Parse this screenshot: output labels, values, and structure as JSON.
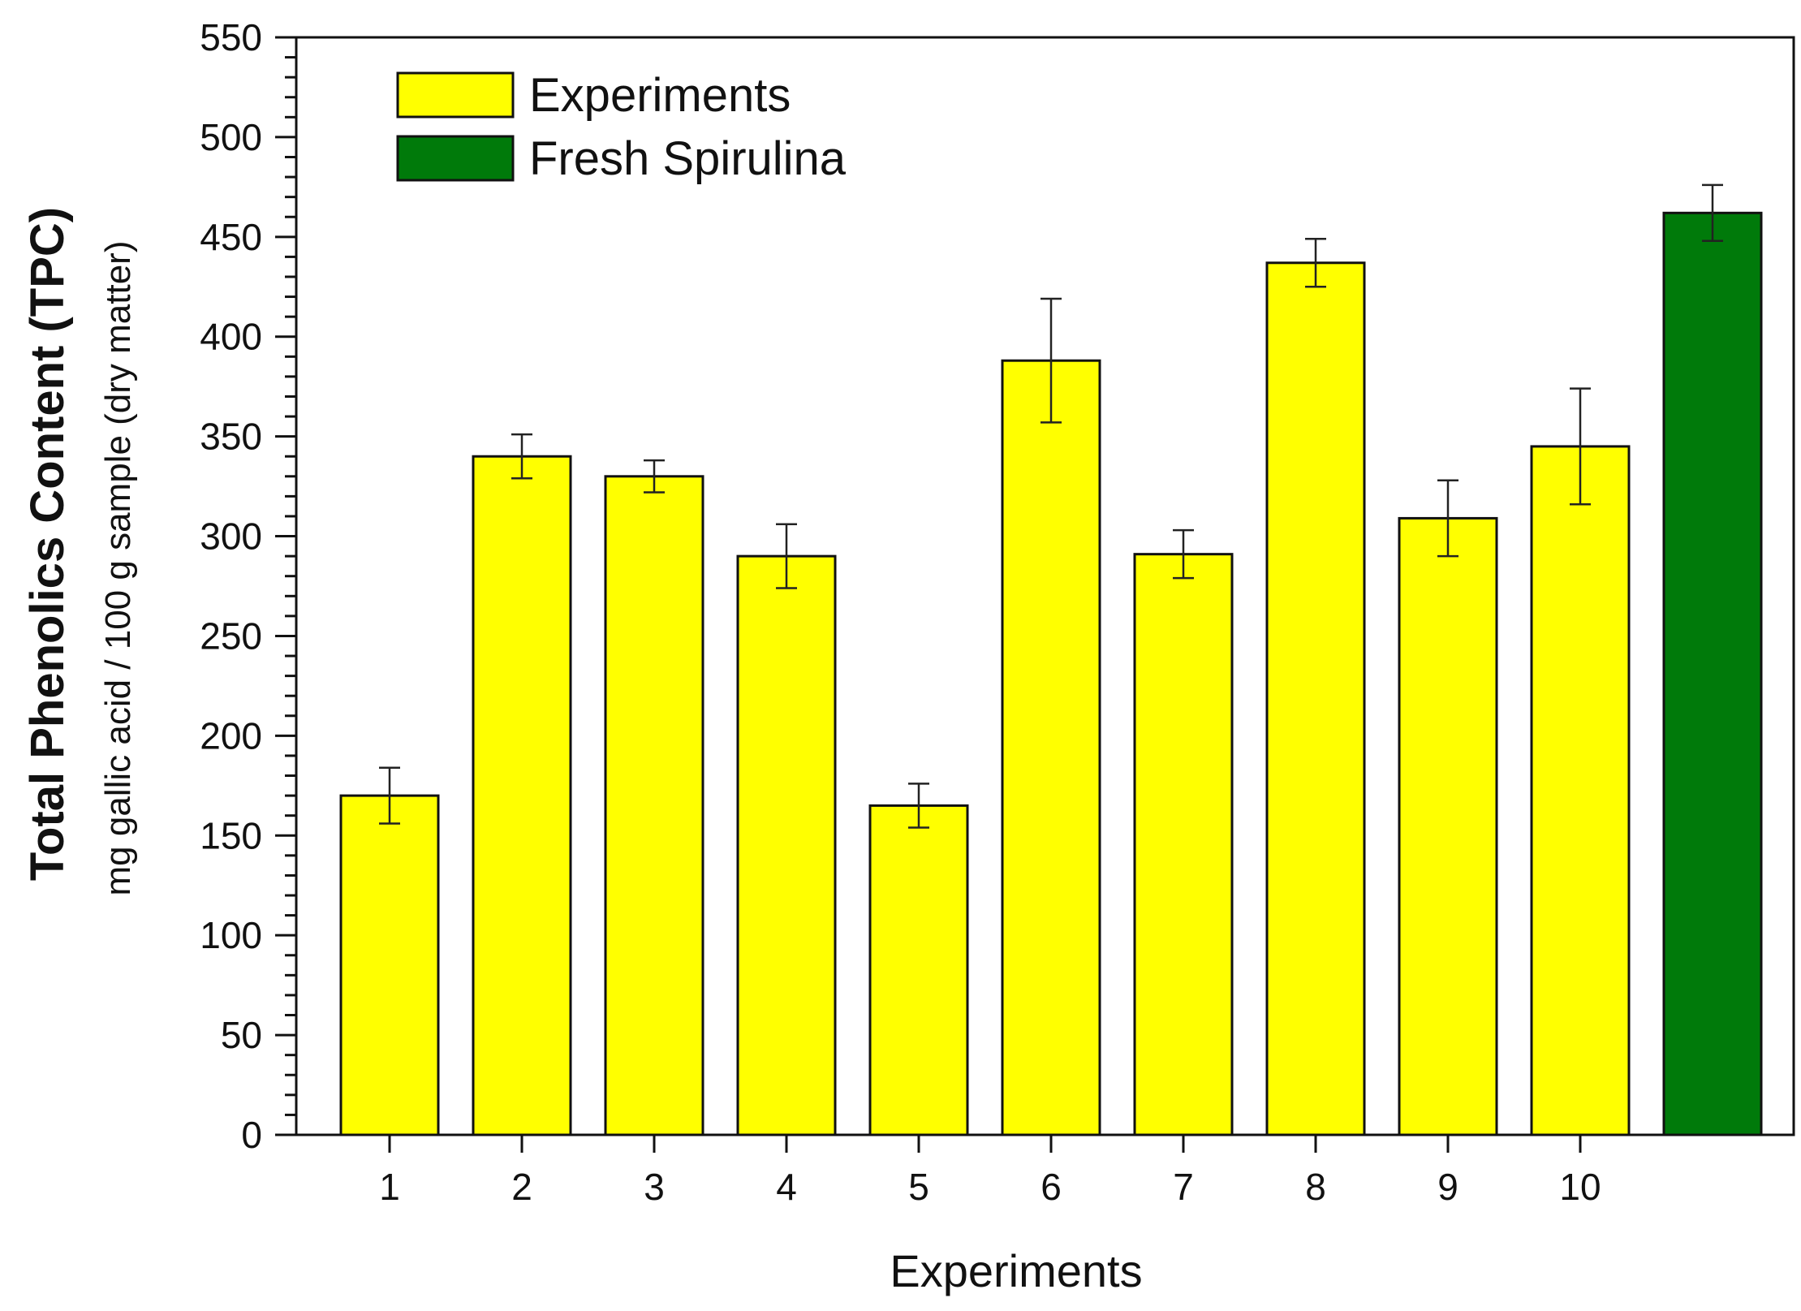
{
  "chart_data": {
    "type": "bar",
    "title": "",
    "xlabel": "Experiments",
    "ylabel": "Total Phenolics Content (TPC)",
    "ylabel_sub": "mg gallic acid / 100 g sample (dry matter)",
    "ylim": [
      0,
      550
    ],
    "yticks": [
      "0",
      "50",
      "100",
      "150",
      "200",
      "250",
      "300",
      "350",
      "400",
      "450",
      "500",
      "550"
    ],
    "y_minor_step": 10,
    "legend": {
      "position": "top-left"
    },
    "series": [
      {
        "name": "Experiments",
        "color": "#FFFF00",
        "categories": [
          "1",
          "2",
          "3",
          "4",
          "5",
          "6",
          "7",
          "8",
          "9",
          "10"
        ],
        "values": [
          170,
          340,
          330,
          290,
          165,
          388,
          291,
          437,
          309,
          345
        ],
        "errors": [
          14,
          11,
          8,
          16,
          11,
          31,
          12,
          12,
          19,
          29
        ]
      },
      {
        "name": "Fresh Spirulina",
        "color": "#007A0A",
        "categories": [
          ""
        ],
        "values": [
          462
        ],
        "errors": [
          14
        ]
      }
    ]
  }
}
